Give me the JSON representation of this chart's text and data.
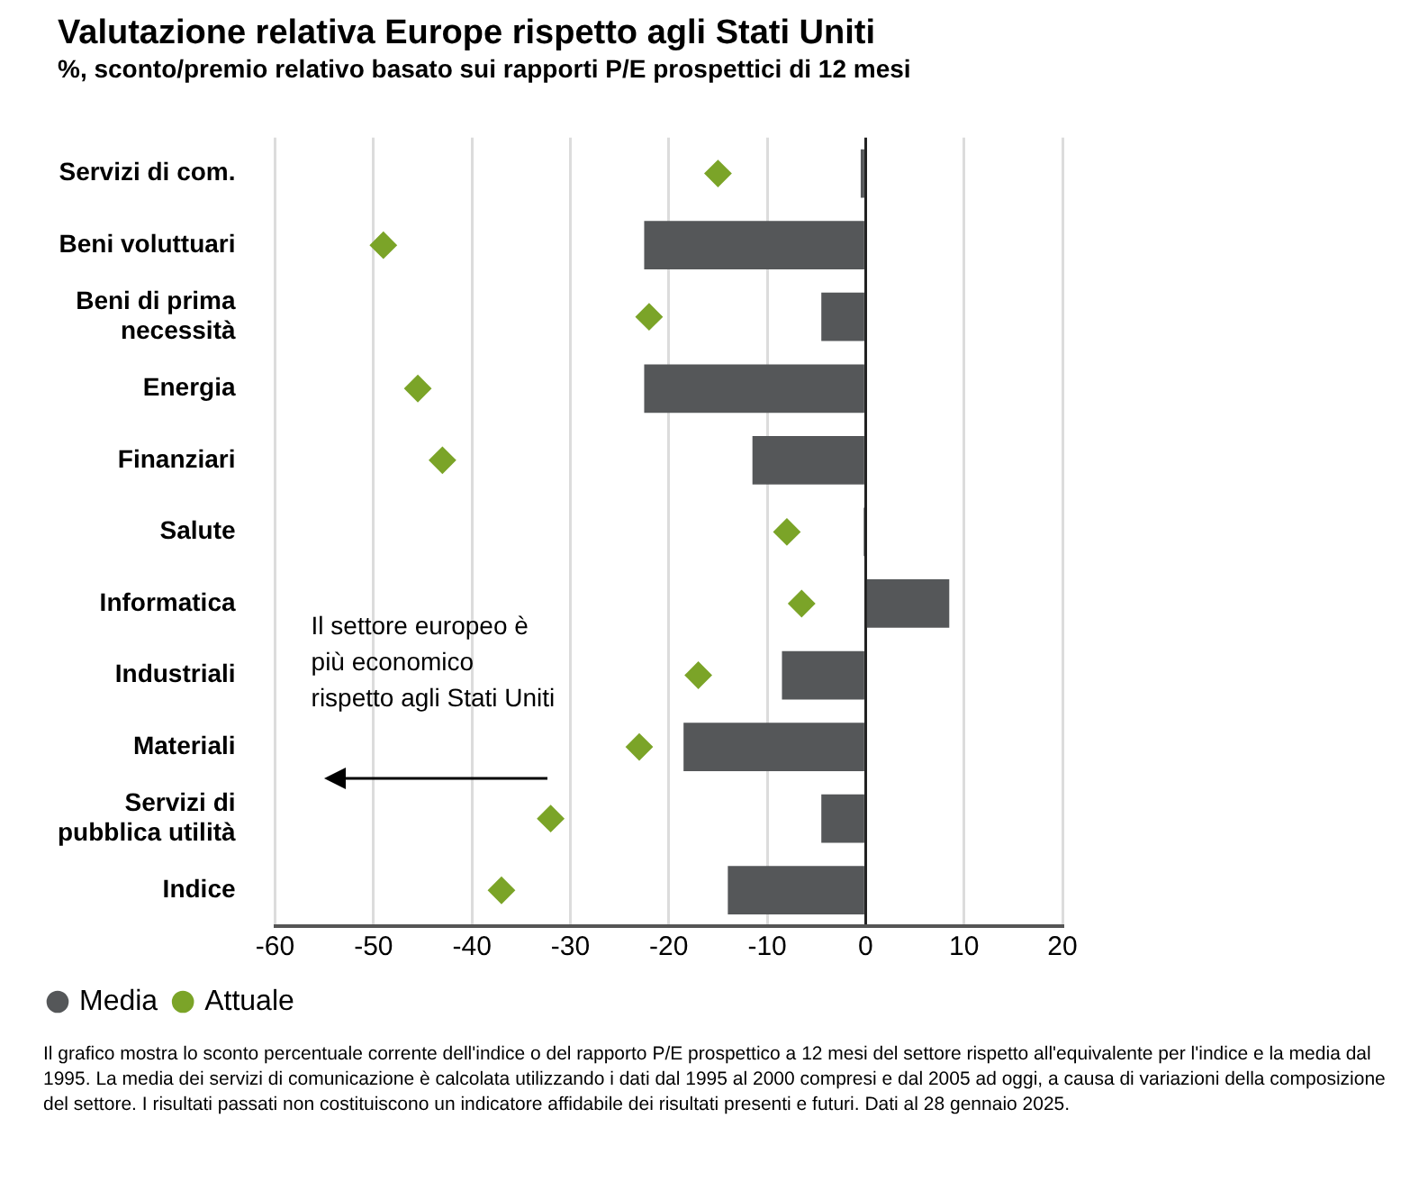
{
  "chart_data": {
    "type": "bar",
    "orientation": "horizontal",
    "title": "Valutazione relativa Europe rispetto agli Stati Uniti",
    "subtitle": "%, sconto/premio relativo  basato sui rapporti P/E prospettici di 12 mesi",
    "categories": [
      "Servizi di com.",
      "Beni voluttuari",
      "Beni di prima\nnecessità",
      "Energia",
      "Finanziari",
      "Salute",
      "Informatica",
      "Industriali",
      "Materiali",
      "Servizi di\npubblica utilità",
      "Indice"
    ],
    "series": [
      {
        "name": "Media",
        "color": "#555759",
        "values": [
          -0.5,
          -22.5,
          -4.5,
          -22.5,
          -11.5,
          -0.2,
          8.5,
          -8.5,
          -18.5,
          -4.5,
          -14
        ]
      },
      {
        "name": "Attuale",
        "type": "scatter",
        "marker": "diamond",
        "color": "#7ba428",
        "values": [
          -15,
          -49,
          -22,
          -45.5,
          -43,
          -8,
          -6.5,
          -17,
          -23,
          -32,
          -37
        ]
      }
    ],
    "xlim": [
      -60,
      20
    ],
    "xticks": [
      -60,
      -50,
      -40,
      -30,
      -20,
      -10,
      0,
      10,
      20
    ],
    "grid": "x",
    "legend": "bottom left",
    "annotations": [
      "Il settore europeo è\npiù economico\nrispetto agli Stati Uniti",
      "Il grafico mostra lo sconto percentuale corrente dell'indice o del rapporto P/E prospettico a 12 mesi del settore rispetto all'equivalente per l'indice e la media dal 1995. La media dei servizi di comunicazione è calcolata utilizzando i dati dal 1995 al 2000 compresi e dal 2005 ad oggi, a causa di variazioni della composizione del settore. I risultati passati non costituiscono un indicatore affidabile dei risultati presenti e futuri. Dati al 28 gennaio 2025."
    ]
  }
}
